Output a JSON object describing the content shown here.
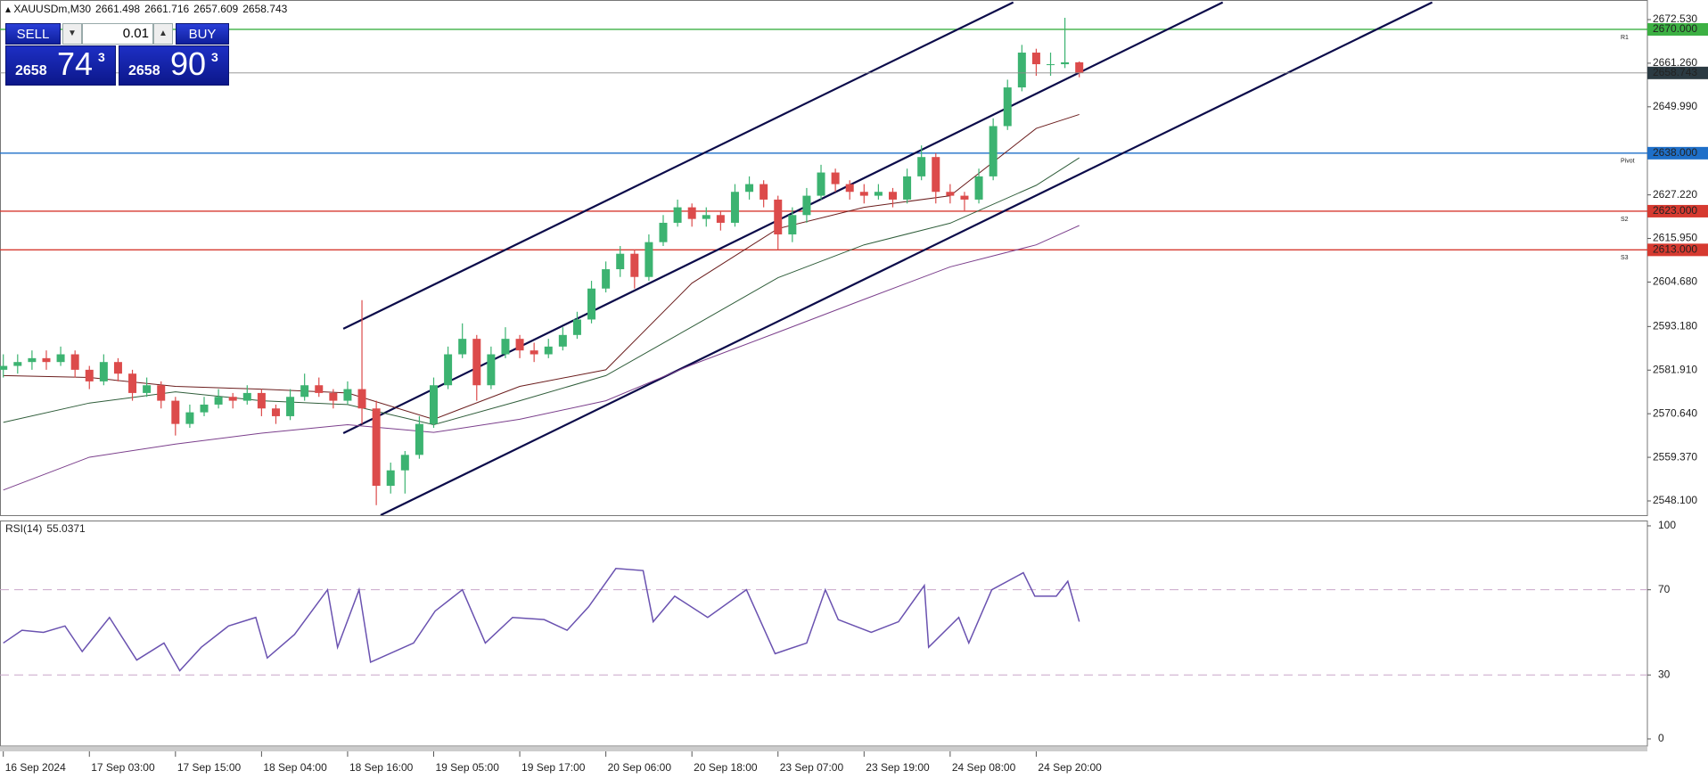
{
  "chart_data": {
    "type": "candlestick",
    "symbol": "XAUUSDm,M30",
    "up_color": "#3cb371",
    "down_color": "#dc4b4b",
    "open": [
      2582,
      2583,
      2584,
      2585,
      2584,
      2586,
      2582,
      2579,
      2584,
      2581,
      2576,
      2578,
      2574,
      2568,
      2571,
      2573,
      2575,
      2574,
      2576,
      2572,
      2570,
      2575,
      2578,
      2576,
      2574,
      2577,
      2572,
      2552,
      2556,
      2560,
      2568,
      2578,
      2586,
      2590,
      2578,
      2586,
      2590,
      2587,
      2586,
      2588,
      2591,
      2595,
      2603,
      2608,
      2612,
      2606,
      2615,
      2620,
      2624,
      2621,
      2622,
      2620,
      2628,
      2630,
      2626,
      2617,
      2622,
      2627,
      2633,
      2630,
      2628,
      2627,
      2628,
      2626,
      2632,
      2637,
      2628,
      2627,
      2626,
      2632,
      2645,
      2655,
      2664,
      2661,
      2661,
      2661.498
    ],
    "high": [
      2586,
      2586,
      2587,
      2587,
      2588,
      2587,
      2583,
      2586,
      2585,
      2582,
      2580,
      2579,
      2575,
      2573,
      2575,
      2577,
      2576,
      2578,
      2577,
      2573,
      2577,
      2581,
      2580,
      2577,
      2579,
      2600,
      2574,
      2558,
      2561,
      2570,
      2580,
      2588,
      2594,
      2591,
      2588,
      2593,
      2591,
      2589,
      2590,
      2593,
      2597,
      2605,
      2610,
      2614,
      2613,
      2617,
      2622,
      2626,
      2625,
      2624,
      2623,
      2630,
      2632,
      2631,
      2627,
      2624,
      2629,
      2635,
      2634,
      2631,
      2630,
      2630,
      2629,
      2634,
      2640,
      2638,
      2630,
      2628,
      2634,
      2647,
      2657,
      2666,
      2665,
      2664,
      2673,
      2661.716
    ],
    "low": [
      2580,
      2581,
      2582,
      2582,
      2583,
      2580,
      2577,
      2578,
      2579,
      2574,
      2575,
      2572,
      2565,
      2567,
      2570,
      2572,
      2572,
      2573,
      2570,
      2568,
      2569,
      2574,
      2575,
      2572,
      2573,
      2568,
      2547,
      2550,
      2550,
      2559,
      2567,
      2577,
      2585,
      2574,
      2577,
      2585,
      2585,
      2584,
      2585,
      2587,
      2590,
      2594,
      2602,
      2606,
      2603,
      2605,
      2614,
      2619,
      2619,
      2619,
      2618,
      2619,
      2626,
      2624,
      2613,
      2615,
      2620,
      2626,
      2628,
      2626,
      2625,
      2626,
      2624,
      2625,
      2631,
      2625,
      2625,
      2623,
      2625,
      2631,
      2644,
      2654,
      2658,
      2658,
      2660,
      2657.609
    ],
    "close": [
      2583,
      2584,
      2585,
      2584,
      2586,
      2582,
      2579,
      2584,
      2581,
      2576,
      2578,
      2574,
      2568,
      2571,
      2573,
      2575,
      2574,
      2576,
      2572,
      2570,
      2575,
      2578,
      2576,
      2574,
      2577,
      2572,
      2552,
      2556,
      2560,
      2568,
      2578,
      2586,
      2590,
      2578,
      2586,
      2590,
      2587,
      2586,
      2588,
      2591,
      2595,
      2603,
      2608,
      2612,
      2606,
      2615,
      2620,
      2624,
      2621,
      2622,
      2620,
      2628,
      2630,
      2626,
      2617,
      2622,
      2627,
      2633,
      2630,
      2628,
      2627,
      2628,
      2626,
      2632,
      2637,
      2628,
      2627,
      2626,
      2632,
      2645,
      2655,
      2664,
      2661,
      2661,
      2661.498,
      2658.743
    ],
    "xlim": [
      0,
      114.6
    ],
    "xticks": [
      {
        "value": 0,
        "label": "16 Sep 2024"
      },
      {
        "value": 6,
        "label": "17 Sep 03:00"
      },
      {
        "value": 12,
        "label": "17 Sep 15:00"
      },
      {
        "value": 18,
        "label": "18 Sep 04:00"
      },
      {
        "value": 24,
        "label": "18 Sep 16:00"
      },
      {
        "value": 30,
        "label": "19 Sep 05:00"
      },
      {
        "value": 36,
        "label": "19 Sep 17:00"
      },
      {
        "value": 42,
        "label": "20 Sep 06:00"
      },
      {
        "value": 48,
        "label": "20 Sep 18:00"
      },
      {
        "value": 54,
        "label": "23 Sep 07:00"
      },
      {
        "value": 60,
        "label": "23 Sep 19:00"
      },
      {
        "value": 66,
        "label": "24 Sep 08:00"
      },
      {
        "value": 72,
        "label": "24 Sep 20:00"
      }
    ],
    "ylim": [
      2544.41,
      2677.14
    ],
    "yticks": [
      {
        "value": 2672.53,
        "label": "2672.530"
      },
      {
        "value": 2661.26,
        "label": "2661.260"
      },
      {
        "value": 2649.99,
        "label": "2649.990"
      },
      {
        "value": 2627.22,
        "label": "2627.220"
      },
      {
        "value": 2615.95,
        "label": "2615.950"
      },
      {
        "value": 2604.68,
        "label": "2604.680"
      },
      {
        "value": 2593.18,
        "label": "2593.180"
      },
      {
        "value": 2581.91,
        "label": "2581.910"
      },
      {
        "value": 2570.64,
        "label": "2570.640"
      },
      {
        "value": 2559.37,
        "label": "2559.370"
      },
      {
        "value": 2548.1,
        "label": "2548.100"
      }
    ],
    "moving_averages": [
      {
        "color": "#6b1d1d",
        "x": [
          0,
          6,
          12,
          18,
          24,
          30,
          36,
          42,
          48,
          54,
          60,
          66,
          72,
          75
        ],
        "values": [
          2580.5,
          2580,
          2577.7,
          2577,
          2576,
          2569.2,
          2577.7,
          2582,
          2604.4,
          2618.5,
          2624,
          2627,
          2644.4,
          2648
        ]
      },
      {
        "color": "#2f5d3a",
        "x": [
          0,
          6,
          12,
          18,
          24,
          30,
          36,
          42,
          48,
          54,
          60,
          66,
          72,
          75
        ],
        "values": [
          2568.4,
          2573.4,
          2576.3,
          2574,
          2573,
          2567.8,
          2574,
          2580.5,
          2593.1,
          2605.8,
          2614.3,
          2619.9,
          2629.7,
          2636.8
        ]
      },
      {
        "color": "#7b3f8c",
        "x": [
          0,
          6,
          12,
          18,
          24,
          30,
          36,
          42,
          48,
          54,
          60,
          66,
          72,
          75
        ],
        "values": [
          2550.9,
          2559.4,
          2562.8,
          2565.6,
          2567.8,
          2565.8,
          2569.2,
          2574,
          2583.3,
          2591.7,
          2600.2,
          2608.6,
          2614.3,
          2619.3
        ]
      }
    ],
    "channels": [
      {
        "color": "#0b0b4a",
        "x": [
          23.7,
          70.4
        ],
        "values": [
          2592.6,
          2677
        ]
      },
      {
        "color": "#0b0b4a",
        "x": [
          23.7,
          85.0
        ],
        "values": [
          2565.6,
          2677
        ]
      },
      {
        "color": "#0b0b4a",
        "x": [
          26.3,
          99.6
        ],
        "values": [
          2544.4,
          2677
        ]
      }
    ],
    "levels": [
      {
        "value": 2670,
        "label": "2670.000",
        "tag": "R1",
        "color": "#3cb043"
      },
      {
        "value": 2638,
        "label": "2638.000",
        "tag": "Pivot",
        "color": "#1e6fc8"
      },
      {
        "value": 2623,
        "label": "2623.000",
        "tag": "S2",
        "color": "#d63a30"
      },
      {
        "value": 2613,
        "label": "2613.000",
        "tag": "S3",
        "color": "#d63a30"
      }
    ],
    "current_color": "#8a8a8a",
    "indicator": {
      "type": "line",
      "label": "RSI(14)",
      "color": "#6a52b0",
      "x": [
        0,
        1.3,
        2.8,
        4.3,
        5.5,
        7.4,
        9.3,
        11.2,
        12.3,
        13.8,
        15.7,
        17.6,
        18.4,
        20.3,
        22.6,
        23.3,
        24.8,
        25.6,
        28.6,
        30.1,
        32.0,
        33.6,
        35.5,
        37.7,
        39.3,
        40.8,
        42.7,
        44.6,
        45.3,
        46.8,
        49.1,
        51.8,
        53.8,
        56.0,
        57.3,
        58.2,
        60.5,
        62.4,
        64.2,
        64.5,
        66.6,
        67.3,
        68.9,
        71.1,
        71.9,
        73.4,
        74.2,
        75
      ],
      "values": [
        45,
        51,
        50,
        53,
        41,
        57,
        37,
        45,
        32,
        43,
        53,
        57,
        38,
        49,
        70,
        43,
        70,
        36,
        45,
        60,
        70,
        45,
        57,
        56,
        51,
        62,
        80,
        79,
        55,
        67,
        57,
        70,
        40,
        45,
        70,
        56,
        50,
        55,
        72,
        43,
        57,
        45,
        70,
        78,
        67,
        67,
        74,
        55.0371
      ],
      "ylim": [
        -3.35,
        102.5
      ],
      "yticks": [
        0,
        30,
        70,
        100
      ],
      "levels": [
        30,
        70
      ]
    }
  },
  "trade_panel": {
    "sell": "SELL",
    "buy": "BUY",
    "lot": "0.01",
    "bid": {
      "big": "2658",
      "pips": "74",
      "point": "3"
    },
    "ask": {
      "big": "2658",
      "pips": "90",
      "point": "3"
    }
  }
}
